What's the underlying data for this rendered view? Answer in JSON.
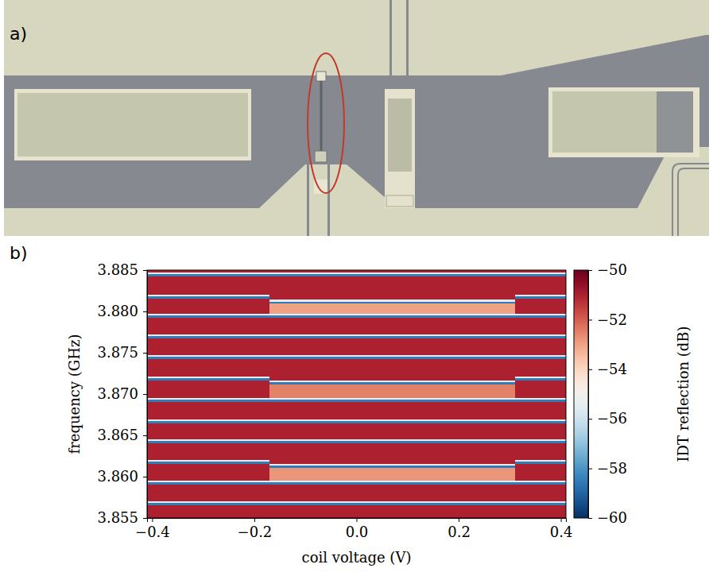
{
  "photo_panel": {
    "label": "a)"
  },
  "chart_data": {
    "type": "heatmap",
    "panel_label": "b)",
    "x_label": "coil voltage (V)",
    "y_label": "frequency (GHz)",
    "xlim": [
      -0.41,
      0.41
    ],
    "xticks": [
      {
        "value": -0.4,
        "label": "−0.4"
      },
      {
        "value": -0.2,
        "label": "−0.2"
      },
      {
        "value": 0,
        "label": "0.0"
      },
      0.2,
      0.4
    ],
    "ylim": [
      3.855,
      3.885
    ],
    "yticks": [
      3.855,
      {
        "value": 3.86,
        "label": "3.860"
      },
      3.865,
      {
        "value": 3.87,
        "label": "3.870"
      },
      3.875,
      {
        "value": 3.88,
        "label": "3.880"
      },
      3.885
    ],
    "x_edges": [
      -0.41,
      -0.17,
      0.055,
      0.31,
      0.41
    ],
    "y_edges": [
      3.855,
      3.85655,
      3.8568,
      3.85705,
      3.85905,
      3.8593,
      3.85955,
      3.86105,
      3.8613,
      3.86155,
      3.8618,
      3.86205,
      3.86405,
      3.8643,
      3.86455,
      3.86645,
      3.8667,
      3.86695,
      3.86905,
      3.8693,
      3.86955,
      3.87115,
      3.8714,
      3.87165,
      3.8719,
      3.87215,
      3.87425,
      3.8745,
      3.87475,
      3.87675,
      3.877,
      3.87725,
      3.87925,
      3.8795,
      3.87975,
      3.88095,
      3.8812,
      3.88145,
      3.88155,
      3.8818,
      3.88205,
      3.88425,
      3.8845,
      3.88475,
      3.885
    ],
    "cells": [
      [
        -51,
        -51,
        -51,
        -51
      ],
      [
        -58.5,
        -58.5,
        -58.5,
        -58.5
      ],
      [
        -55.5,
        -55.5,
        -55.5,
        -55.5
      ],
      [
        -51,
        -51,
        -51,
        -51
      ],
      [
        -58.5,
        -58.5,
        -58.5,
        -58.5
      ],
      [
        -55.5,
        -55.5,
        -55.5,
        -55.5
      ],
      [
        -51,
        -52.8,
        -52.8,
        -51
      ],
      [
        -51,
        -58.5,
        -58.5,
        -51
      ],
      [
        -51,
        -55.5,
        -55.5,
        -51
      ],
      [
        -58.5,
        -51,
        -51,
        -58.5
      ],
      [
        -55.5,
        -51,
        -51,
        -55.5
      ],
      [
        -51,
        -51,
        -51,
        -51
      ],
      [
        -58.5,
        -58.5,
        -58.5,
        -58.5
      ],
      [
        -55.5,
        -55.5,
        -55.5,
        -55.5
      ],
      [
        -51,
        -51,
        -51,
        -51
      ],
      [
        -58.5,
        -58.5,
        -58.5,
        -58.5
      ],
      [
        -55.5,
        -55.5,
        -55.5,
        -55.5
      ],
      [
        -51,
        -51,
        -51,
        -51
      ],
      [
        -58.5,
        -58.5,
        -58.5,
        -58.5
      ],
      [
        -55.5,
        -55.5,
        -55.5,
        -55.5
      ],
      [
        -51,
        -52.5,
        -52.5,
        -51
      ],
      [
        -51,
        -58.5,
        -58.5,
        -51
      ],
      [
        -51,
        -55.5,
        -55.5,
        -51
      ],
      [
        -58.5,
        -51,
        -51,
        -58.5
      ],
      [
        -55.5,
        -51,
        -51,
        -55.5
      ],
      [
        -51,
        -51,
        -51,
        -51
      ],
      [
        -58.5,
        -58.5,
        -58.5,
        -58.5
      ],
      [
        -55.5,
        -55.5,
        -55.5,
        -55.5
      ],
      [
        -51,
        -51,
        -51,
        -51
      ],
      [
        -58.5,
        -58.5,
        -58.5,
        -58.5
      ],
      [
        -55.5,
        -55.5,
        -55.5,
        -55.5
      ],
      [
        -51,
        -51,
        -51,
        -51
      ],
      [
        -58.5,
        -58.5,
        -58.5,
        -58.5
      ],
      [
        -55.5,
        -55.5,
        -55.5,
        -55.5
      ],
      [
        -51,
        -53,
        -53,
        -51
      ],
      [
        -51,
        -58.5,
        -58.5,
        -51
      ],
      [
        -51,
        -55.5,
        -55.5,
        -51
      ],
      [
        -51,
        -51,
        -51,
        -51
      ],
      [
        -58.5,
        -51,
        -51,
        -58.5
      ],
      [
        -55.5,
        -51,
        -51,
        -55.5
      ],
      [
        -51,
        -51,
        -51,
        -51
      ],
      [
        -58.5,
        -58.5,
        -58.5,
        -58.5
      ],
      [
        -55.5,
        -55.5,
        -55.5,
        -55.5
      ],
      [
        -51,
        -51,
        -51,
        -51
      ]
    ],
    "colorbar": {
      "label": "IDT reflection (dB)",
      "range": [
        -60,
        -50
      ],
      "ticks": [
        {
          "value": -60,
          "label": "−60"
        },
        {
          "value": -58,
          "label": "−58"
        },
        {
          "value": -56,
          "label": "−56"
        },
        {
          "value": -54,
          "label": "−54"
        },
        {
          "value": -52,
          "label": "−52"
        },
        {
          "value": -50,
          "label": "−50"
        }
      ]
    }
  }
}
